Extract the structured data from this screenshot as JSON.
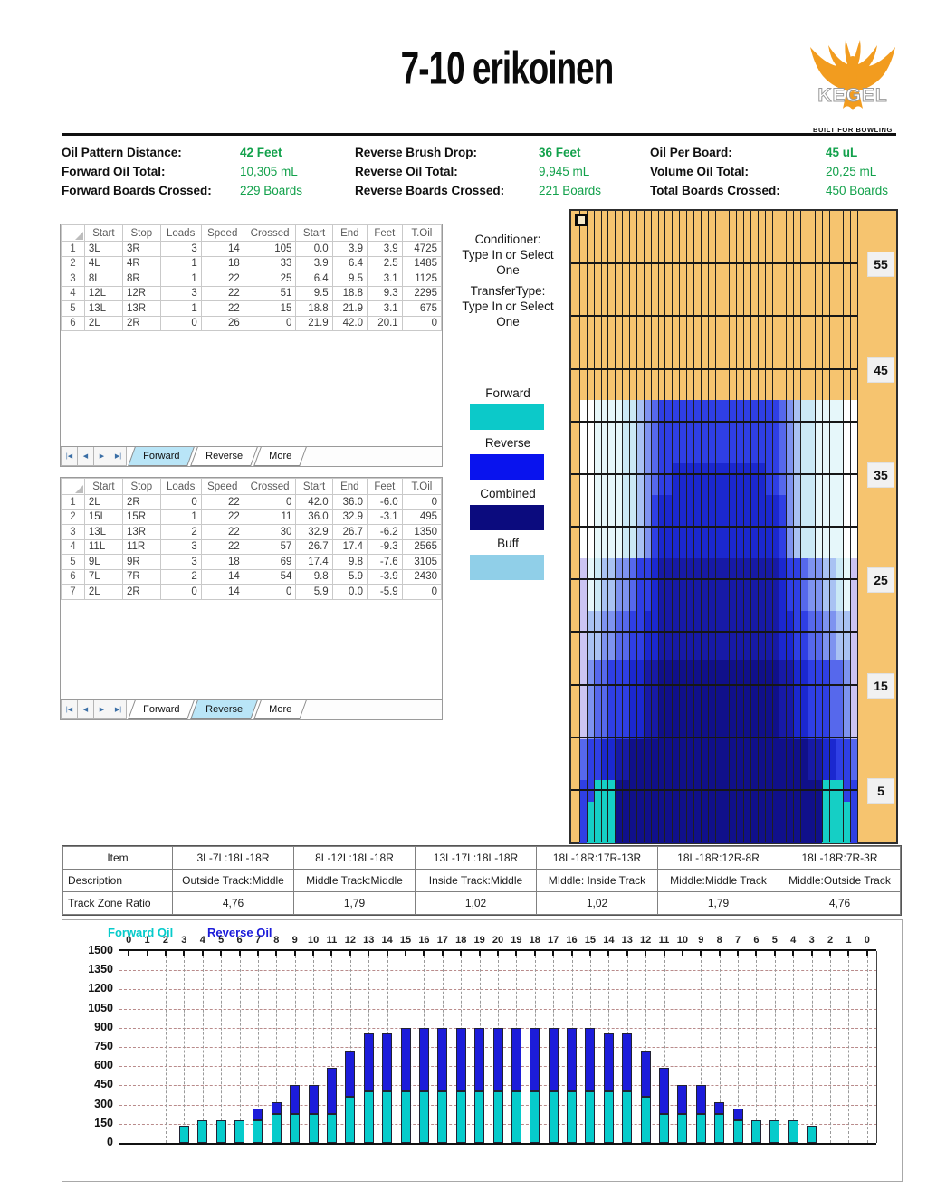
{
  "header": {
    "title": "7-10 erikoinen"
  },
  "logo": {
    "brand": "KEGEL",
    "tagline": "BUILT FOR BOWLING",
    "phoenix_color": "#F29C1F"
  },
  "stats": {
    "columns": [
      {
        "rows": [
          {
            "label": "Oil Pattern Distance:",
            "value": "42 Feet",
            "bold": true
          },
          {
            "label": "Forward Oil Total:",
            "value": "10,305 mL",
            "bold": false
          },
          {
            "label": "Forward Boards Crossed:",
            "value": "229 Boards",
            "bold": false
          }
        ]
      },
      {
        "rows": [
          {
            "label": "Reverse Brush Drop:",
            "value": "36 Feet",
            "bold": true
          },
          {
            "label": "Reverse Oil Total:",
            "value": "9,945 mL",
            "bold": false
          },
          {
            "label": "Reverse Boards Crossed:",
            "value": "221 Boards",
            "bold": false
          }
        ]
      },
      {
        "rows": [
          {
            "label": "Oil Per Board:",
            "value": "45 uL",
            "bold": true
          },
          {
            "label": "Volume Oil Total:",
            "value": "20,25 mL",
            "bold": false
          },
          {
            "label": "Total Boards Crossed:",
            "value": "450 Boards",
            "bold": false
          }
        ]
      }
    ]
  },
  "forward_table": {
    "headers": [
      "Start",
      "Stop",
      "Loads",
      "Speed",
      "Crossed",
      "Start",
      "End",
      "Feet",
      "T.Oil"
    ],
    "rows": [
      [
        "3L",
        "3R",
        "3",
        "14",
        "105",
        "0.0",
        "3.9",
        "3.9",
        "4725"
      ],
      [
        "4L",
        "4R",
        "1",
        "18",
        "33",
        "3.9",
        "6.4",
        "2.5",
        "1485"
      ],
      [
        "8L",
        "8R",
        "1",
        "22",
        "25",
        "6.4",
        "9.5",
        "3.1",
        "1125"
      ],
      [
        "12L",
        "12R",
        "3",
        "22",
        "51",
        "9.5",
        "18.8",
        "9.3",
        "2295"
      ],
      [
        "13L",
        "13R",
        "1",
        "22",
        "15",
        "18.8",
        "21.9",
        "3.1",
        "675"
      ],
      [
        "2L",
        "2R",
        "0",
        "26",
        "0",
        "21.9",
        "42.0",
        "20.1",
        "0"
      ]
    ],
    "tabs": [
      "Forward",
      "Reverse",
      "More"
    ],
    "active_tab": 0
  },
  "reverse_table": {
    "headers": [
      "Start",
      "Stop",
      "Loads",
      "Speed",
      "Crossed",
      "Start",
      "End",
      "Feet",
      "T.Oil"
    ],
    "rows": [
      [
        "2L",
        "2R",
        "0",
        "22",
        "0",
        "42.0",
        "36.0",
        "-6.0",
        "0"
      ],
      [
        "15L",
        "15R",
        "1",
        "22",
        "11",
        "36.0",
        "32.9",
        "-3.1",
        "495"
      ],
      [
        "13L",
        "13R",
        "2",
        "22",
        "30",
        "32.9",
        "26.7",
        "-6.2",
        "1350"
      ],
      [
        "11L",
        "11R",
        "3",
        "22",
        "57",
        "26.7",
        "17.4",
        "-9.3",
        "2565"
      ],
      [
        "9L",
        "9R",
        "3",
        "18",
        "69",
        "17.4",
        "9.8",
        "-7.6",
        "3105"
      ],
      [
        "7L",
        "7R",
        "2",
        "14",
        "54",
        "9.8",
        "5.9",
        "-3.9",
        "2430"
      ],
      [
        "2L",
        "2R",
        "0",
        "14",
        "0",
        "5.9",
        "0.0",
        "-5.9",
        "0"
      ]
    ],
    "tabs": [
      "Forward",
      "Reverse",
      "More"
    ],
    "active_tab": 1
  },
  "sheet_nav_icons": {
    "first": "|◀",
    "prev": "◀",
    "next": "▶",
    "last": "▶|"
  },
  "legend": {
    "conditioner": {
      "label": "Conditioner:",
      "lines": [
        "Type In or Select",
        "One"
      ]
    },
    "transfer": {
      "label": "TransferType:",
      "lines": [
        "Type In or Select",
        "One"
      ]
    },
    "swatches": [
      {
        "label": "Forward",
        "color": "#0CC9C9"
      },
      {
        "label": "Reverse",
        "color": "#0913EE"
      },
      {
        "label": "Combined",
        "color": "#0B0B7E"
      },
      {
        "label": "Buff",
        "color": "#90CFE8"
      }
    ]
  },
  "lane": {
    "boards": 39,
    "feet_total": 60,
    "markers": [
      "55",
      "45",
      "35",
      "25",
      "15",
      "5"
    ],
    "marker_feet": [
      55,
      45,
      35,
      25,
      15,
      5
    ],
    "palette": {
      "O": "#F6C46F",
      "W": "#FFFFFF",
      "P": "#E6F7FA",
      "Q": "#CBE9F5",
      "L": "#A9C2F3",
      "M": "#7E93F0",
      "E": "#5668EC",
      "B": "#2F3FE4",
      "D": "#1B28CF",
      "N": "#171AA6",
      "K": "#10108A",
      "T": "#15CFC5",
      "V": "#CCC5F2"
    },
    "bands": [
      {
        "from": 60,
        "to": 42,
        "cells": "OOOOOOOOOOOOOOOOOOOOOOOOOOOOOOOOOOOOOOO"
      },
      {
        "from": 42,
        "to": 36,
        "cells": "WWPPPPQQLMEBBBBBBBBBBBBBBBBBEMLQQPPPPWW"
      },
      {
        "from": 36,
        "to": 33,
        "cells": "WWPPPPQQLMEBBDDDDDDDDDDDDDBBEMLQQPPPPWW"
      },
      {
        "from": 33,
        "to": 27,
        "cells": "WWPPPPQQLMBDDDDDDDDDDDDDDDDDBMLQQPPPPWW"
      },
      {
        "from": 27,
        "to": 22,
        "cells": "VPQLLMMEBBDNNNNNNNNNNNNNNNNNDBBEMMLLQPV"
      },
      {
        "from": 22,
        "to": 17.4,
        "cells": "VLLMMEEBBDDNNNNNNNNNNNNNNNNNDDBBEEMMLLV"
      },
      {
        "from": 17.4,
        "to": 9.8,
        "cells": "VMEEBBBDDNNKKKKKKKKKKKKKKKKKNNDDBBBEEMV"
      },
      {
        "from": 9.8,
        "to": 5.9,
        "cells": "EBBDDNNKKKKKKKKKKKKKKKKKKKKKKKKKNNDDBBE"
      },
      {
        "from": 5.9,
        "to": 3.9,
        "cells": "BBTTTKKKKKKKKKKKKKKKKKKKKKKKKKKKKKTTTBB"
      },
      {
        "from": 3.9,
        "to": 0,
        "cells": "BTTTTKKKKKKKKKKKKKKKKKKKKKKKKKKKKKTTTTB"
      }
    ]
  },
  "ratio_table": {
    "row_labels": [
      "Item",
      "Description",
      "Track Zone Ratio"
    ],
    "items": [
      "3L-7L:18L-18R",
      "8L-12L:18L-18R",
      "13L-17L:18L-18R",
      "18L-18R:17R-13R",
      "18L-18R:12R-8R",
      "18L-18R:7R-3R"
    ],
    "descriptions": [
      "Outside Track:Middle",
      "Middle Track:Middle",
      "Inside Track:Middle",
      "MIddle: Inside Track",
      "Middle:Middle Track",
      "Middle:Outside Track"
    ],
    "ratios": [
      "4,76",
      "1,79",
      "1,02",
      "1,02",
      "1,79",
      "4,76"
    ]
  },
  "chart_data": {
    "type": "bar",
    "stacked": true,
    "legend": [
      {
        "label": "Forward Oil",
        "color": "#06CBCB"
      },
      {
        "label": "Reverse Oil",
        "color": "#1C1CDA"
      }
    ],
    "x_labels": [
      "0",
      "1",
      "2",
      "3",
      "4",
      "5",
      "6",
      "7",
      "8",
      "9",
      "10",
      "11",
      "12",
      "13",
      "14",
      "15",
      "16",
      "17",
      "18",
      "19",
      "20",
      "19",
      "18",
      "17",
      "16",
      "15",
      "14",
      "13",
      "12",
      "11",
      "10",
      "9",
      "8",
      "7",
      "6",
      "5",
      "4",
      "3",
      "2",
      "1",
      "0"
    ],
    "series": [
      {
        "name": "Forward Oil",
        "values": [
          0,
          0,
          0,
          135,
          180,
          180,
          180,
          180,
          225,
          225,
          225,
          225,
          360,
          405,
          405,
          405,
          405,
          405,
          405,
          405,
          405,
          405,
          405,
          405,
          405,
          405,
          405,
          405,
          360,
          225,
          225,
          225,
          225,
          180,
          180,
          180,
          180,
          135,
          0,
          0,
          0
        ]
      },
      {
        "name": "Reverse Oil",
        "values": [
          0,
          0,
          0,
          0,
          0,
          0,
          0,
          90,
          90,
          225,
          225,
          360,
          360,
          450,
          450,
          495,
          495,
          495,
          495,
          495,
          495,
          495,
          495,
          495,
          495,
          495,
          450,
          450,
          360,
          360,
          225,
          225,
          90,
          90,
          0,
          0,
          0,
          0,
          0,
          0,
          0
        ]
      }
    ],
    "y_ticks": [
      "1500",
      "1350",
      "1200",
      "1050",
      "900",
      "750",
      "600",
      "450",
      "300",
      "150",
      "0"
    ],
    "ylim": [
      0,
      1500
    ],
    "grid": "dashed"
  }
}
